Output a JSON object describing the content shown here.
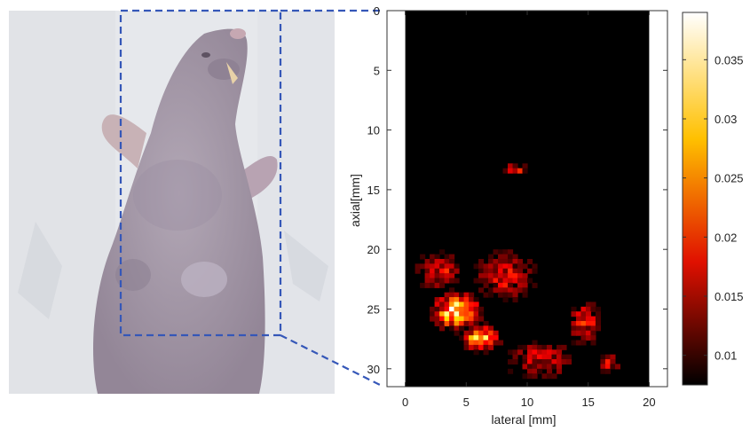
{
  "photo": {
    "subject": "mouse-photo",
    "background_color": "#e6e8ec",
    "body_color": "#a497a8"
  },
  "roi": {
    "color": "#3557b8"
  },
  "chart_data": {
    "type": "heatmap",
    "xlabel": "lateral [mm]",
    "ylabel": "axial[mm]",
    "xlim": [
      -1.5,
      21.5
    ],
    "ylim": [
      0,
      31.5
    ],
    "image_x_range": [
      0,
      20
    ],
    "x_ticks": [
      0,
      5,
      10,
      15,
      20
    ],
    "y_ticks": [
      0,
      5,
      10,
      15,
      20,
      25,
      30
    ],
    "colormap": "hot",
    "colorbar_ticks": [
      0.01,
      0.015,
      0.02,
      0.025,
      0.03,
      0.035
    ],
    "colorbar_range": [
      0.0075,
      0.039
    ],
    "blobs": [
      {
        "x": 4.0,
        "y": 25.0,
        "intensity": 0.037,
        "rx": 2.0,
        "ry": 1.6
      },
      {
        "x": 6.0,
        "y": 27.2,
        "intensity": 0.034,
        "rx": 1.6,
        "ry": 1.1
      },
      {
        "x": 8.8,
        "y": 13.1,
        "intensity": 0.024,
        "rx": 1.1,
        "ry": 0.5
      },
      {
        "x": 2.5,
        "y": 21.5,
        "intensity": 0.021,
        "rx": 2.2,
        "ry": 2.0
      },
      {
        "x": 8.0,
        "y": 22.0,
        "intensity": 0.02,
        "rx": 3.0,
        "ry": 2.5
      },
      {
        "x": 14.5,
        "y": 26.0,
        "intensity": 0.022,
        "rx": 1.5,
        "ry": 2.2
      },
      {
        "x": 16.5,
        "y": 29.5,
        "intensity": 0.02,
        "rx": 1.0,
        "ry": 1.2
      },
      {
        "x": 11.0,
        "y": 29.0,
        "intensity": 0.019,
        "rx": 3.5,
        "ry": 2.0
      }
    ]
  }
}
